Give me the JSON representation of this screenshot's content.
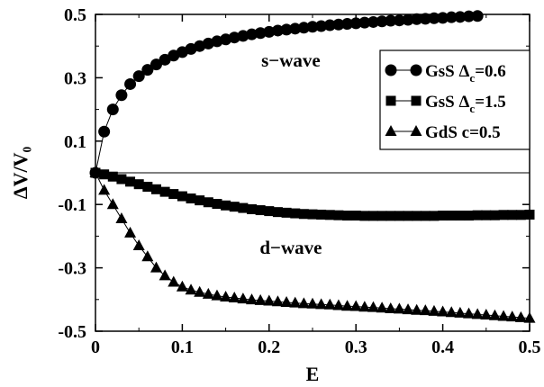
{
  "chart_data": {
    "type": "line",
    "xlabel": "E",
    "ylabel": "ΔV/V₀",
    "xlim": [
      0,
      0.5
    ],
    "ylim": [
      -0.5,
      0.5
    ],
    "xticks": [
      "0",
      "0.1",
      "0.2",
      "0.3",
      "0.4",
      "0.5"
    ],
    "yticks": [
      "0.5",
      "0.3",
      "0.1",
      "-0.1",
      "-0.3",
      "-0.5"
    ],
    "grid": false,
    "reference_line_y": 0,
    "legend_position": "top-right",
    "annotations": [
      {
        "text": "s−wave",
        "x": 0.225,
        "y": 0.335
      },
      {
        "text": "d−wave",
        "x": 0.225,
        "y": -0.255
      }
    ],
    "series": [
      {
        "name": "GsS Δc=0.6",
        "legend_main": "GsS Δ",
        "legend_sub": "c",
        "legend_tail": "=0.6",
        "marker": "circle",
        "x": [
          0,
          0.01,
          0.02,
          0.03,
          0.04,
          0.05,
          0.06,
          0.07,
          0.08,
          0.09,
          0.1,
          0.11,
          0.12,
          0.13,
          0.14,
          0.15,
          0.16,
          0.17,
          0.18,
          0.19,
          0.2,
          0.21,
          0.22,
          0.23,
          0.24,
          0.25,
          0.26,
          0.27,
          0.28,
          0.29,
          0.3,
          0.31,
          0.32,
          0.33,
          0.34,
          0.35,
          0.36,
          0.37,
          0.38,
          0.39,
          0.4,
          0.41,
          0.42,
          0.43,
          0.44
        ],
        "values": [
          0,
          0.13,
          0.2,
          0.245,
          0.28,
          0.305,
          0.325,
          0.342,
          0.357,
          0.37,
          0.381,
          0.391,
          0.4,
          0.408,
          0.415,
          0.421,
          0.427,
          0.432,
          0.437,
          0.441,
          0.445,
          0.449,
          0.452,
          0.455,
          0.458,
          0.461,
          0.463,
          0.466,
          0.468,
          0.47,
          0.472,
          0.474,
          0.476,
          0.478,
          0.48,
          0.481,
          0.483,
          0.485,
          0.486,
          0.488,
          0.489,
          0.491,
          0.492,
          0.494,
          0.495
        ]
      },
      {
        "name": "GsS Δc=1.5",
        "legend_main": "GsS Δ",
        "legend_sub": "c",
        "legend_tail": "=1.5",
        "marker": "square",
        "x": [
          0,
          0.01,
          0.02,
          0.03,
          0.04,
          0.05,
          0.06,
          0.07,
          0.08,
          0.09,
          0.1,
          0.11,
          0.12,
          0.13,
          0.14,
          0.15,
          0.16,
          0.17,
          0.18,
          0.19,
          0.2,
          0.21,
          0.22,
          0.23,
          0.24,
          0.25,
          0.26,
          0.27,
          0.28,
          0.29,
          0.3,
          0.31,
          0.32,
          0.33,
          0.34,
          0.35,
          0.36,
          0.37,
          0.38,
          0.39,
          0.4,
          0.41,
          0.42,
          0.43,
          0.44,
          0.45,
          0.46,
          0.47,
          0.48,
          0.49,
          0.5
        ],
        "values": [
          0,
          -0.005,
          -0.012,
          -0.02,
          -0.028,
          -0.036,
          -0.044,
          -0.052,
          -0.06,
          -0.067,
          -0.074,
          -0.081,
          -0.087,
          -0.093,
          -0.098,
          -0.103,
          -0.107,
          -0.111,
          -0.115,
          -0.118,
          -0.121,
          -0.124,
          -0.126,
          -0.128,
          -0.13,
          -0.131,
          -0.132,
          -0.133,
          -0.134,
          -0.135,
          -0.135,
          -0.136,
          -0.136,
          -0.136,
          -0.136,
          -0.136,
          -0.136,
          -0.136,
          -0.136,
          -0.136,
          -0.135,
          -0.135,
          -0.135,
          -0.135,
          -0.134,
          -0.134,
          -0.134,
          -0.133,
          -0.133,
          -0.133,
          -0.132
        ]
      },
      {
        "name": "GdS c=0.5",
        "legend_main": "GdS c=0.5",
        "legend_sub": "",
        "legend_tail": "",
        "marker": "triangle",
        "x": [
          0,
          0.01,
          0.02,
          0.03,
          0.04,
          0.05,
          0.06,
          0.07,
          0.08,
          0.09,
          0.1,
          0.11,
          0.12,
          0.13,
          0.14,
          0.15,
          0.16,
          0.17,
          0.18,
          0.19,
          0.2,
          0.21,
          0.22,
          0.23,
          0.24,
          0.25,
          0.26,
          0.27,
          0.28,
          0.29,
          0.3,
          0.31,
          0.32,
          0.33,
          0.34,
          0.35,
          0.36,
          0.37,
          0.38,
          0.39,
          0.4,
          0.41,
          0.42,
          0.43,
          0.44,
          0.45,
          0.46,
          0.47,
          0.48,
          0.49,
          0.5
        ],
        "values": [
          0,
          -0.055,
          -0.1,
          -0.145,
          -0.19,
          -0.23,
          -0.265,
          -0.3,
          -0.325,
          -0.345,
          -0.36,
          -0.37,
          -0.377,
          -0.383,
          -0.388,
          -0.392,
          -0.395,
          -0.398,
          -0.401,
          -0.403,
          -0.405,
          -0.407,
          -0.409,
          -0.411,
          -0.413,
          -0.414,
          -0.416,
          -0.417,
          -0.419,
          -0.421,
          -0.422,
          -0.424,
          -0.425,
          -0.427,
          -0.429,
          -0.43,
          -0.432,
          -0.434,
          -0.435,
          -0.437,
          -0.439,
          -0.441,
          -0.443,
          -0.445,
          -0.447,
          -0.449,
          -0.451,
          -0.453,
          -0.455,
          -0.457,
          -0.459
        ]
      }
    ]
  }
}
